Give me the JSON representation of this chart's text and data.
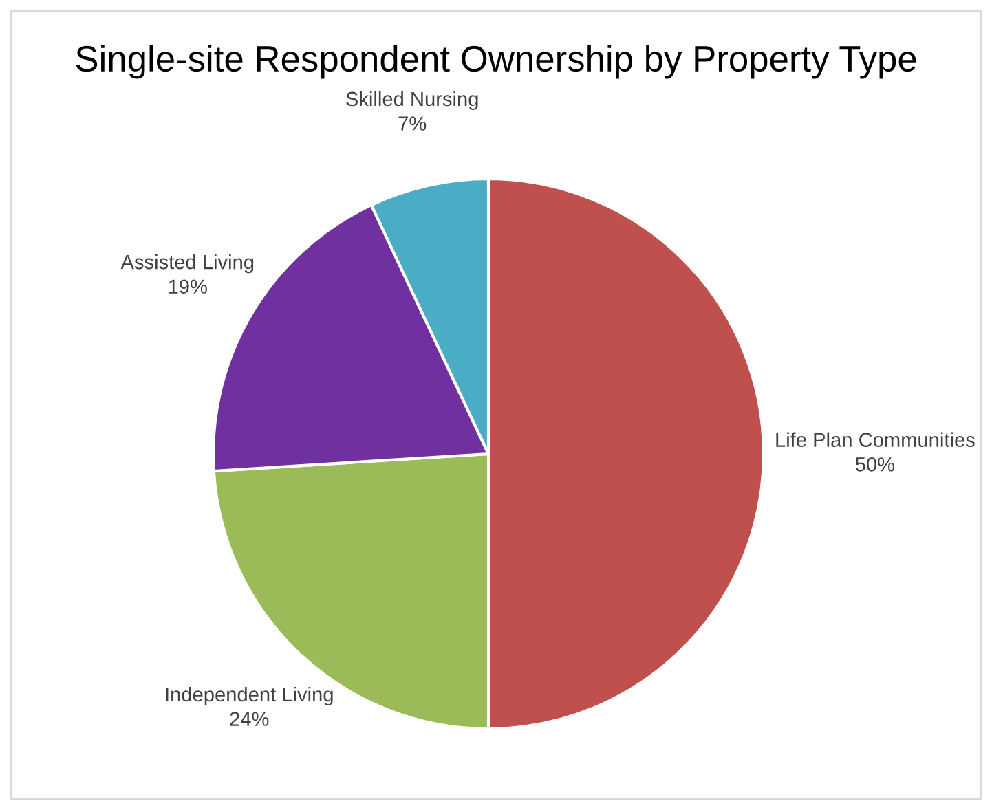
{
  "chart_data": {
    "type": "pie",
    "title": "Single-site Respondent Ownership by Property Type",
    "categories": [
      "Life Plan Communities",
      "Independent Living",
      "Assisted Living",
      "Skilled Nursing"
    ],
    "values": [
      50,
      24,
      19,
      7
    ],
    "value_labels": [
      "50%",
      "24%",
      "19%",
      "7%"
    ],
    "colors": [
      "#c0504d",
      "#9bbb59",
      "#7030a0",
      "#4bacc6"
    ],
    "legend": false
  }
}
